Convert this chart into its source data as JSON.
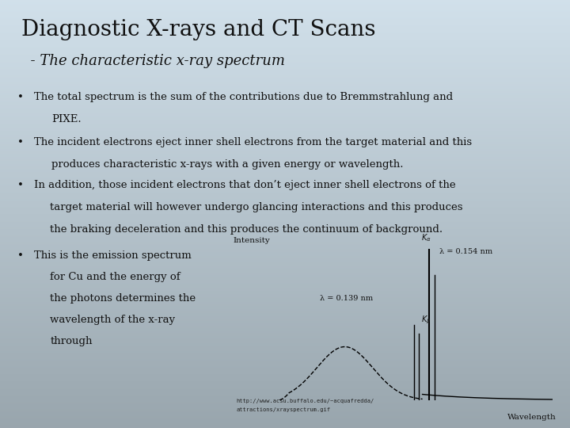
{
  "title": "Diagnostic X-rays and CT Scans",
  "subtitle": "  - The characteristic x-ray spectrum",
  "bullet1_line1": "The total spectrum is the sum of the contributions due to Bremmstrahlung and",
  "bullet1_line2": "PIXE.",
  "bullet2_line1": "The incident electrons eject inner shell electrons from the target material and this",
  "bullet2_line2": "produces characteristic x-rays with a given energy or wavelength.",
  "bullet3_line1": "In addition, those incident electrons that don’t eject inner shell electrons of the",
  "bullet3_line2": "target material will however undergo glancing interactions and this produces",
  "bullet3_line3": "the braking deceleration and this produces the continuum of background.",
  "bullet4_line1": "This is the emission spectrum",
  "bullet4_line2": "for Cu and the energy of",
  "bullet4_line3": "the photons determines the",
  "bullet4_line4": "wavelength of the x-ray",
  "bullet4_line5": "through",
  "url_line1": "http://www.acsu.buffalo.edu/~acquafredda/",
  "url_line2": "attractions/xrayspectrum.gif",
  "graph_xlabel": "Wavelength",
  "graph_ylabel": "Intensity",
  "annotation_ka": "λ = 0.154 nm",
  "annotation_kb": "λ = 0.139 nm",
  "text_color": "#111111",
  "font_family": "serif",
  "bg_top": "#9daab0",
  "bg_mid": "#b8c4c8",
  "bg_bot": "#d0dce2"
}
